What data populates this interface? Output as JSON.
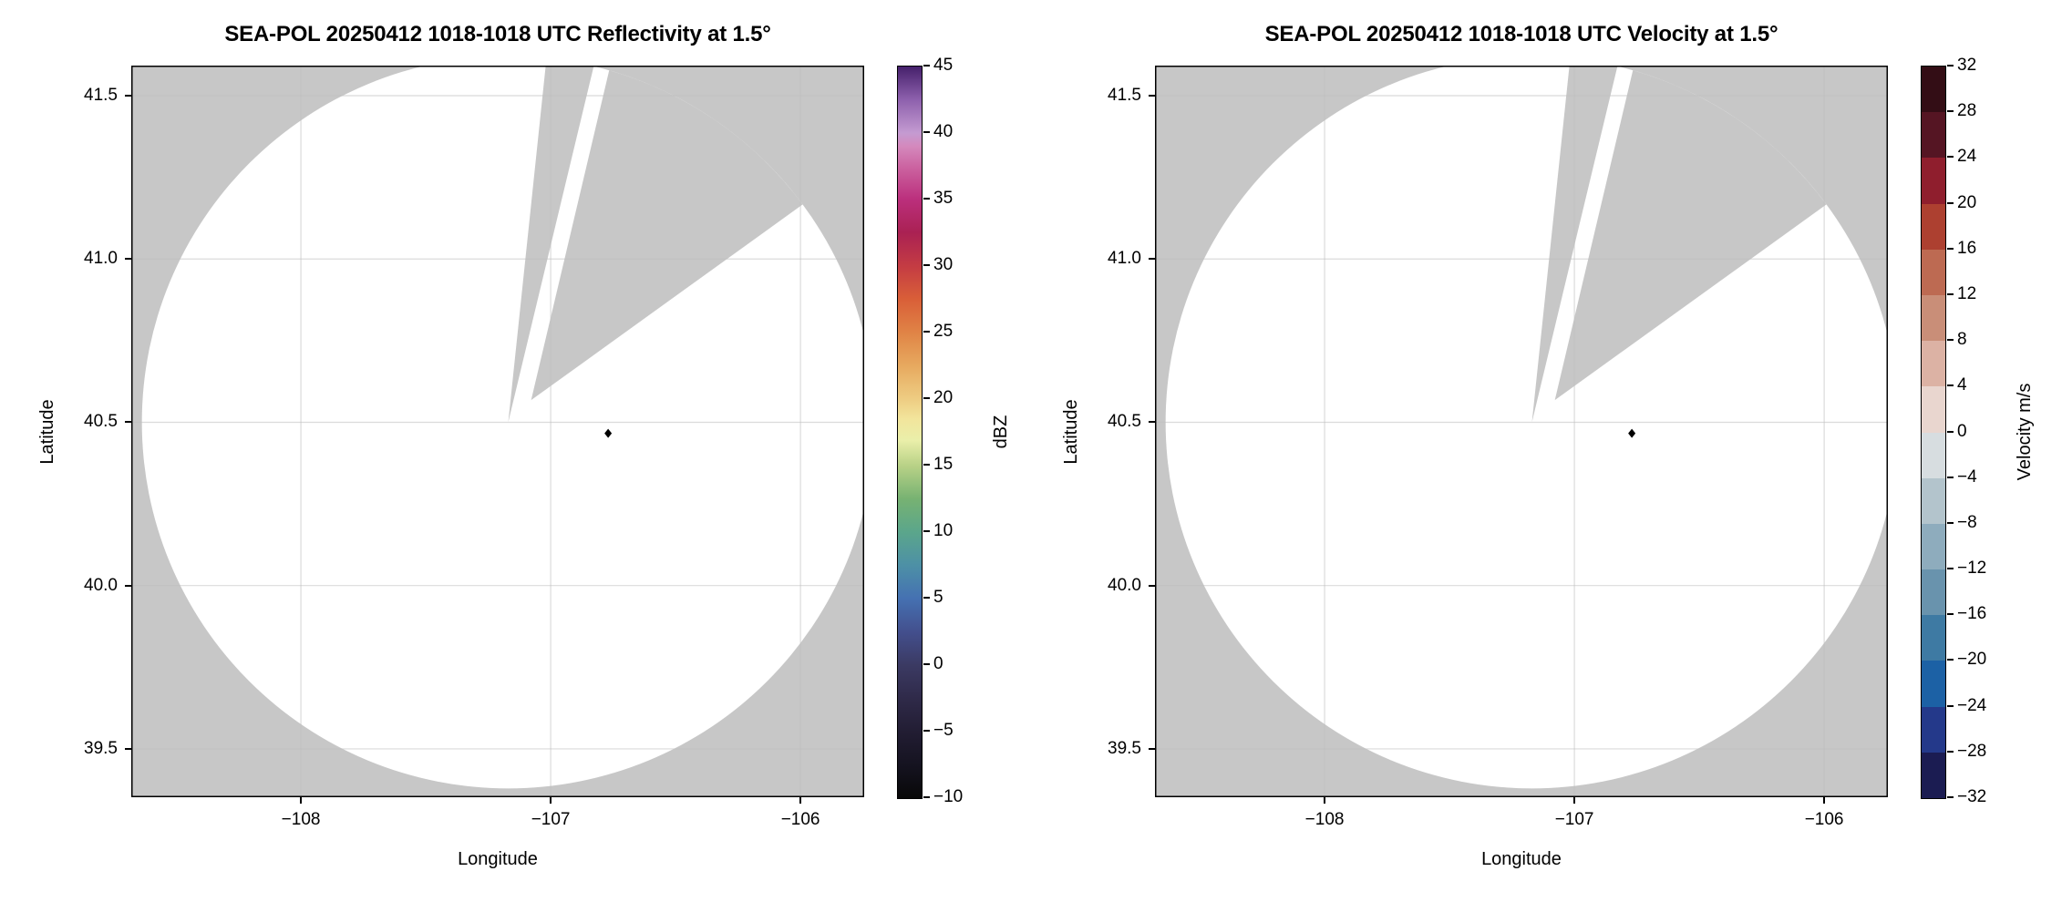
{
  "figure": {
    "background": "#ffffff",
    "map_background": "#c7c7c7",
    "coverage_color": "#ffffff",
    "grid_color": "#bdbdbd",
    "spine_color": "#000000"
  },
  "chart_data": [
    {
      "type": "radar_ppi",
      "title": "SEA-POL 20250412 1018-1018 UTC Reflectivity at 1.5°",
      "xlabel": "Longitude",
      "ylabel": "Latitude",
      "xlim": [
        -108.679,
        -105.745
      ],
      "ylim": [
        39.352,
        41.592
      ],
      "x_tick_values": [
        -108,
        -107,
        -106
      ],
      "x_tick_labels": [
        "−108",
        "−107",
        "−106"
      ],
      "y_tick_values": [
        41.5,
        41.0,
        40.5,
        40.0,
        39.5
      ],
      "y_tick_labels": [
        "41.5",
        "41.0",
        "40.5",
        "40.0",
        "39.5"
      ],
      "grid": true,
      "radar": {
        "center_lon": -107.17,
        "center_lat": 40.5,
        "radius_deg_lat": 1.121,
        "blocked_sector_narrow": {
          "az_start_deg": 6,
          "az_end_deg": 13.5
        },
        "blocked_sector_wide": {
          "az_start_deg": 16,
          "az_end_deg": 53.5,
          "inner_radius_frac": 0.087,
          "inner_az_deg": 46
        }
      },
      "echo_point": {
        "lon": -106.77,
        "lat": 40.466,
        "color": "#000000"
      },
      "colorbar": {
        "label": "dBZ",
        "kind": "gradient",
        "vmin": -10,
        "vmax": 45,
        "tick_values": [
          45,
          40,
          35,
          30,
          25,
          20,
          15,
          10,
          5,
          0,
          -5,
          -10
        ],
        "tick_labels": [
          "45",
          "40",
          "35",
          "30",
          "25",
          "20",
          "15",
          "10",
          "5",
          "0",
          "−5",
          "−10"
        ],
        "stops": [
          [
            0.0,
            "#080808"
          ],
          [
            0.045,
            "#151320"
          ],
          [
            0.091,
            "#221d33"
          ],
          [
            0.136,
            "#2f2a49"
          ],
          [
            0.182,
            "#3b3a63"
          ],
          [
            0.227,
            "#434f8d"
          ],
          [
            0.273,
            "#4571b2"
          ],
          [
            0.318,
            "#4d90a6"
          ],
          [
            0.364,
            "#5ba68b"
          ],
          [
            0.409,
            "#77b272"
          ],
          [
            0.455,
            "#b9d287"
          ],
          [
            0.489,
            "#eaefaa"
          ],
          [
            0.518,
            "#f2e59c"
          ],
          [
            0.545,
            "#eecd83"
          ],
          [
            0.591,
            "#e7a95f"
          ],
          [
            0.636,
            "#e08446"
          ],
          [
            0.682,
            "#d95f38"
          ],
          [
            0.727,
            "#c43c43"
          ],
          [
            0.773,
            "#aa2153"
          ],
          [
            0.818,
            "#bb2f7c"
          ],
          [
            0.864,
            "#cc65a2"
          ],
          [
            0.891,
            "#d489bd"
          ],
          [
            0.909,
            "#c49bd1"
          ],
          [
            0.955,
            "#8d60ad"
          ],
          [
            1.0,
            "#45206b"
          ]
        ]
      }
    },
    {
      "type": "radar_ppi",
      "title": "SEA-POL 20250412 1018-1018 UTC Velocity at 1.5°",
      "xlabel": "Longitude",
      "ylabel": "Latitude",
      "xlim": [
        -108.679,
        -105.745
      ],
      "ylim": [
        39.352,
        41.592
      ],
      "x_tick_values": [
        -108,
        -107,
        -106
      ],
      "x_tick_labels": [
        "−108",
        "−107",
        "−106"
      ],
      "y_tick_values": [
        41.5,
        41.0,
        40.5,
        40.0,
        39.5
      ],
      "y_tick_labels": [
        "41.5",
        "41.0",
        "40.5",
        "40.0",
        "39.5"
      ],
      "grid": true,
      "radar": {
        "center_lon": -107.17,
        "center_lat": 40.5,
        "radius_deg_lat": 1.121,
        "blocked_sector_narrow": {
          "az_start_deg": 6,
          "az_end_deg": 13.5
        },
        "blocked_sector_wide": {
          "az_start_deg": 16,
          "az_end_deg": 53.5,
          "inner_radius_frac": 0.087,
          "inner_az_deg": 46
        }
      },
      "echo_point": {
        "lon": -106.77,
        "lat": 40.466,
        "color": "#000000"
      },
      "colorbar": {
        "label": "Velocity m/s",
        "kind": "discrete",
        "vmin": -32,
        "vmax": 32,
        "tick_values": [
          32,
          28,
          24,
          20,
          16,
          12,
          8,
          4,
          0,
          -4,
          -8,
          -12,
          -16,
          -20,
          -24,
          -28,
          -32
        ],
        "tick_labels": [
          "32",
          "28",
          "24",
          "20",
          "16",
          "12",
          "8",
          "4",
          "0",
          "−4",
          "−8",
          "−12",
          "−16",
          "−20",
          "−24",
          "−28",
          "−32"
        ],
        "segments_top_to_bottom": [
          {
            "range": [
              28,
              32
            ],
            "color": "#330d15"
          },
          {
            "range": [
              24,
              28
            ],
            "color": "#551523"
          },
          {
            "range": [
              20,
              24
            ],
            "color": "#8f1e2d"
          },
          {
            "range": [
              16,
              20
            ],
            "color": "#ad4030"
          },
          {
            "range": [
              12,
              16
            ],
            "color": "#bd6a52"
          },
          {
            "range": [
              8,
              12
            ],
            "color": "#c98e78"
          },
          {
            "range": [
              4,
              8
            ],
            "color": "#dcb2a4"
          },
          {
            "range": [
              0,
              4
            ],
            "color": "#e9d6cf"
          },
          {
            "range": [
              -4,
              0
            ],
            "color": "#d7dde0"
          },
          {
            "range": [
              -8,
              -4
            ],
            "color": "#b3c4cc"
          },
          {
            "range": [
              -12,
              -8
            ],
            "color": "#8eacbd"
          },
          {
            "range": [
              -16,
              -12
            ],
            "color": "#6993ad"
          },
          {
            "range": [
              -20,
              -16
            ],
            "color": "#3e7aa3"
          },
          {
            "range": [
              -24,
              -20
            ],
            "color": "#1c61a5"
          },
          {
            "range": [
              -28,
              -24
            ],
            "color": "#24398a"
          },
          {
            "range": [
              -32,
              -28
            ],
            "color": "#1b1c52"
          }
        ]
      }
    }
  ]
}
